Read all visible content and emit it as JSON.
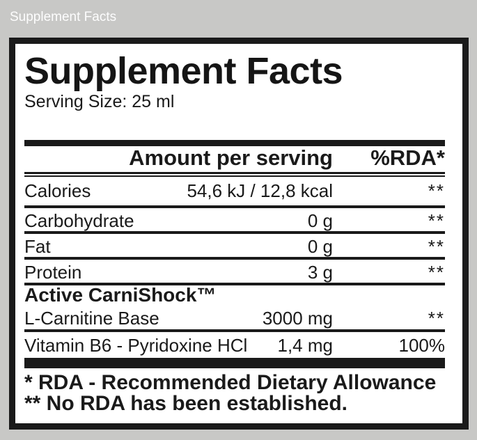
{
  "window": {
    "title": "Supplement Facts"
  },
  "colors": {
    "background": "#c8c8c6",
    "panel_background": "#ffffff",
    "ink": "#1a1a1a",
    "caption_text": "#fdfdfd"
  },
  "label": {
    "title": "Supplement Facts",
    "serving_size": "Serving Size: 25 ml",
    "header": {
      "amount": "Amount per serving",
      "rda": "%RDA*"
    },
    "rows": [
      {
        "name": "Calories",
        "amount": "54,6 kJ / 12,8 kcal",
        "rda": "**"
      },
      {
        "name": "Carbohydrate",
        "amount": "0 g",
        "rda": "**"
      },
      {
        "name": "Fat",
        "amount": "0 g",
        "rda": "**"
      },
      {
        "name": "Protein",
        "amount": "3 g",
        "rda": "**"
      }
    ],
    "section": {
      "title": "Active CarniShock™",
      "rows": [
        {
          "name": "L-Carnitine Base",
          "amount": "3000 mg",
          "rda": "**"
        },
        {
          "name": "Vitamin B6 - Pyridoxine HCl",
          "amount": "1,4 mg",
          "rda": "100%"
        }
      ]
    },
    "footnotes": [
      "* RDA - Recommended Dietary Allowance",
      "** No RDA has been established."
    ]
  }
}
